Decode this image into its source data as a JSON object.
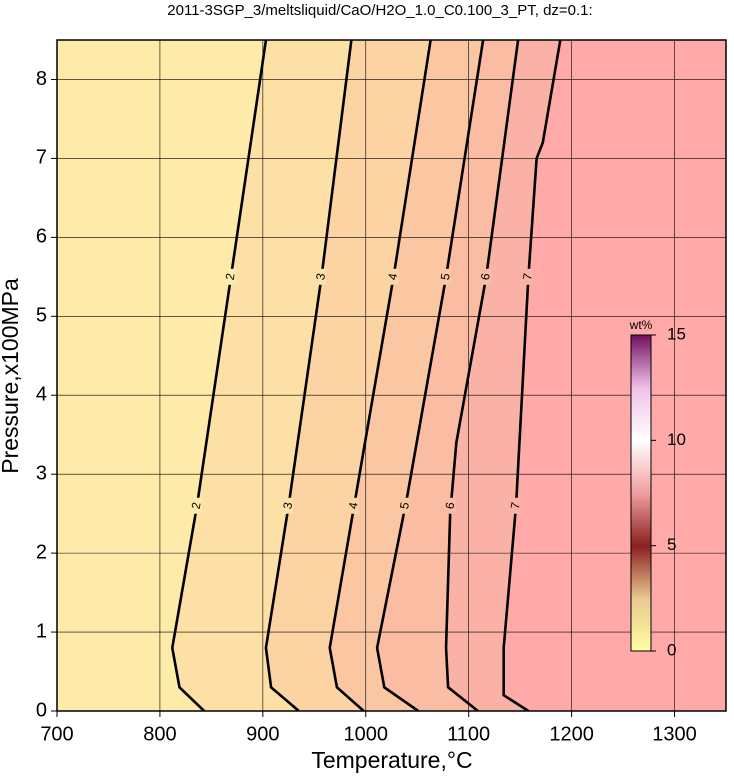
{
  "chart_data": {
    "type": "contour",
    "title": "2011-3SGP_3/meltsliquid/CaO/H2O_1.0_C0.100_3_PT, dz=0.1:",
    "xlabel": "Temperature,°C",
    "ylabel": "Pressure,x100MPa",
    "xlim": [
      700,
      1350
    ],
    "xticks": [
      700,
      800,
      900,
      1000,
      1100,
      1200,
      1300
    ],
    "ylim": [
      0,
      8.5
    ],
    "yticks": [
      0,
      1,
      2,
      3,
      4,
      5,
      6,
      7,
      8
    ],
    "grid": true,
    "band_colors": [
      "#feeaa9",
      "#fde0a5",
      "#fcd3a2",
      "#fbc7a2",
      "#fabca3",
      "#f9b2a5",
      "#ffaaa8"
    ],
    "contours": [
      {
        "level": 2,
        "T": [
          843,
          819,
          812,
          836,
          869,
          903
        ],
        "P": [
          0,
          0.3,
          0.8,
          2.6,
          5.5,
          8.5
        ]
      },
      {
        "level": 3,
        "T": [
          935,
          908,
          903,
          925,
          957,
          986
        ],
        "P": [
          0,
          0.3,
          0.8,
          2.6,
          5.5,
          8.5
        ]
      },
      {
        "level": 4,
        "T": [
          998,
          972,
          965,
          990,
          1027,
          1063
        ],
        "P": [
          0,
          0.3,
          0.8,
          2.7,
          5.5,
          8.5
        ]
      },
      {
        "level": 5,
        "T": [
          1051,
          1018,
          1011,
          1040,
          1078,
          1114
        ],
        "P": [
          0,
          0.3,
          0.8,
          2.7,
          5.5,
          8.5
        ]
      },
      {
        "level": 6,
        "T": [
          1109,
          1080,
          1078,
          1082,
          1088,
          1117,
          1148
        ],
        "P": [
          0,
          0.3,
          0.8,
          2.5,
          3.4,
          5.5,
          8.5
        ]
      },
      {
        "level": 7,
        "T": [
          1158,
          1134,
          1134,
          1146,
          1158,
          1166,
          1172,
          1189
        ],
        "P": [
          0,
          0.2,
          0.8,
          2.6,
          5.5,
          7.0,
          7.2,
          8.5
        ]
      }
    ],
    "colorbar": {
      "label": "wt%",
      "lim": [
        0,
        15
      ],
      "ticks": [
        0,
        5,
        10,
        15
      ],
      "colors": [
        "#ffffa0",
        "#e8c890",
        "#8a2020",
        "#f0a0a0",
        "#ffffff",
        "#f0c0e8",
        "#701060"
      ]
    }
  }
}
